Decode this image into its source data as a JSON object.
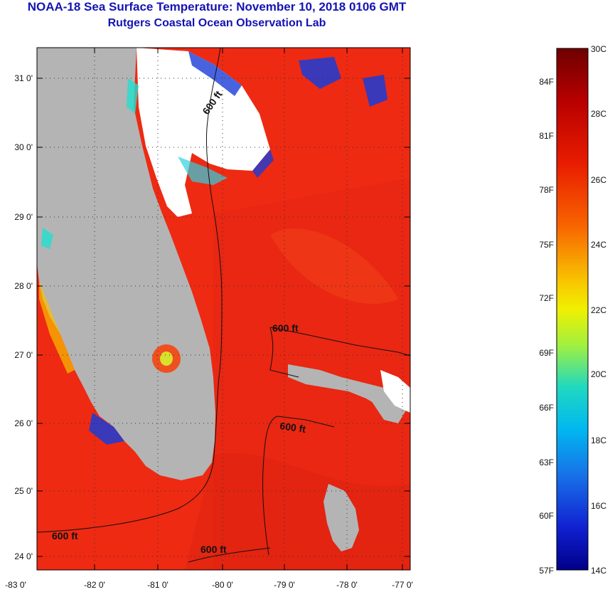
{
  "header": {
    "title": "NOAA-18 Sea Surface Temperature:  November 10, 2018 0106 GMT",
    "subtitle": "Rutgers Coastal Ocean Observation Lab"
  },
  "map": {
    "lat_labels": [
      "31 0'",
      "30 0'",
      "29 0'",
      "28 0'",
      "27 0'",
      "26 0'",
      "25 0'",
      "24 0'"
    ],
    "lon_labels": [
      "-83 0'",
      "-82 0'",
      "-81 0'",
      "-80 0'",
      "-79 0'",
      "-78 0'",
      "-77 0'"
    ],
    "contour_labels": [
      "600 ft",
      "600 ft",
      "600 ft",
      "600 ft",
      "600 ft"
    ],
    "colors": {
      "land": "#b4b4b4",
      "cloud": "#ffffff",
      "water": "#f02a10"
    }
  },
  "colorbar": {
    "celsius_labels": [
      "30C",
      "28C",
      "26C",
      "24C",
      "22C",
      "20C",
      "18C",
      "16C",
      "14C"
    ],
    "fahrenheit_labels": [
      "84F",
      "81F",
      "78F",
      "75F",
      "72F",
      "69F",
      "66F",
      "63F",
      "60F",
      "57F"
    ],
    "colors": [
      "#780000",
      "#c80000",
      "#f03000",
      "#f87010",
      "#f8c000",
      "#f0f000",
      "#a0f040",
      "#30e0b0",
      "#00c8f0",
      "#1080f0",
      "#1030e0",
      "#000090"
    ]
  }
}
